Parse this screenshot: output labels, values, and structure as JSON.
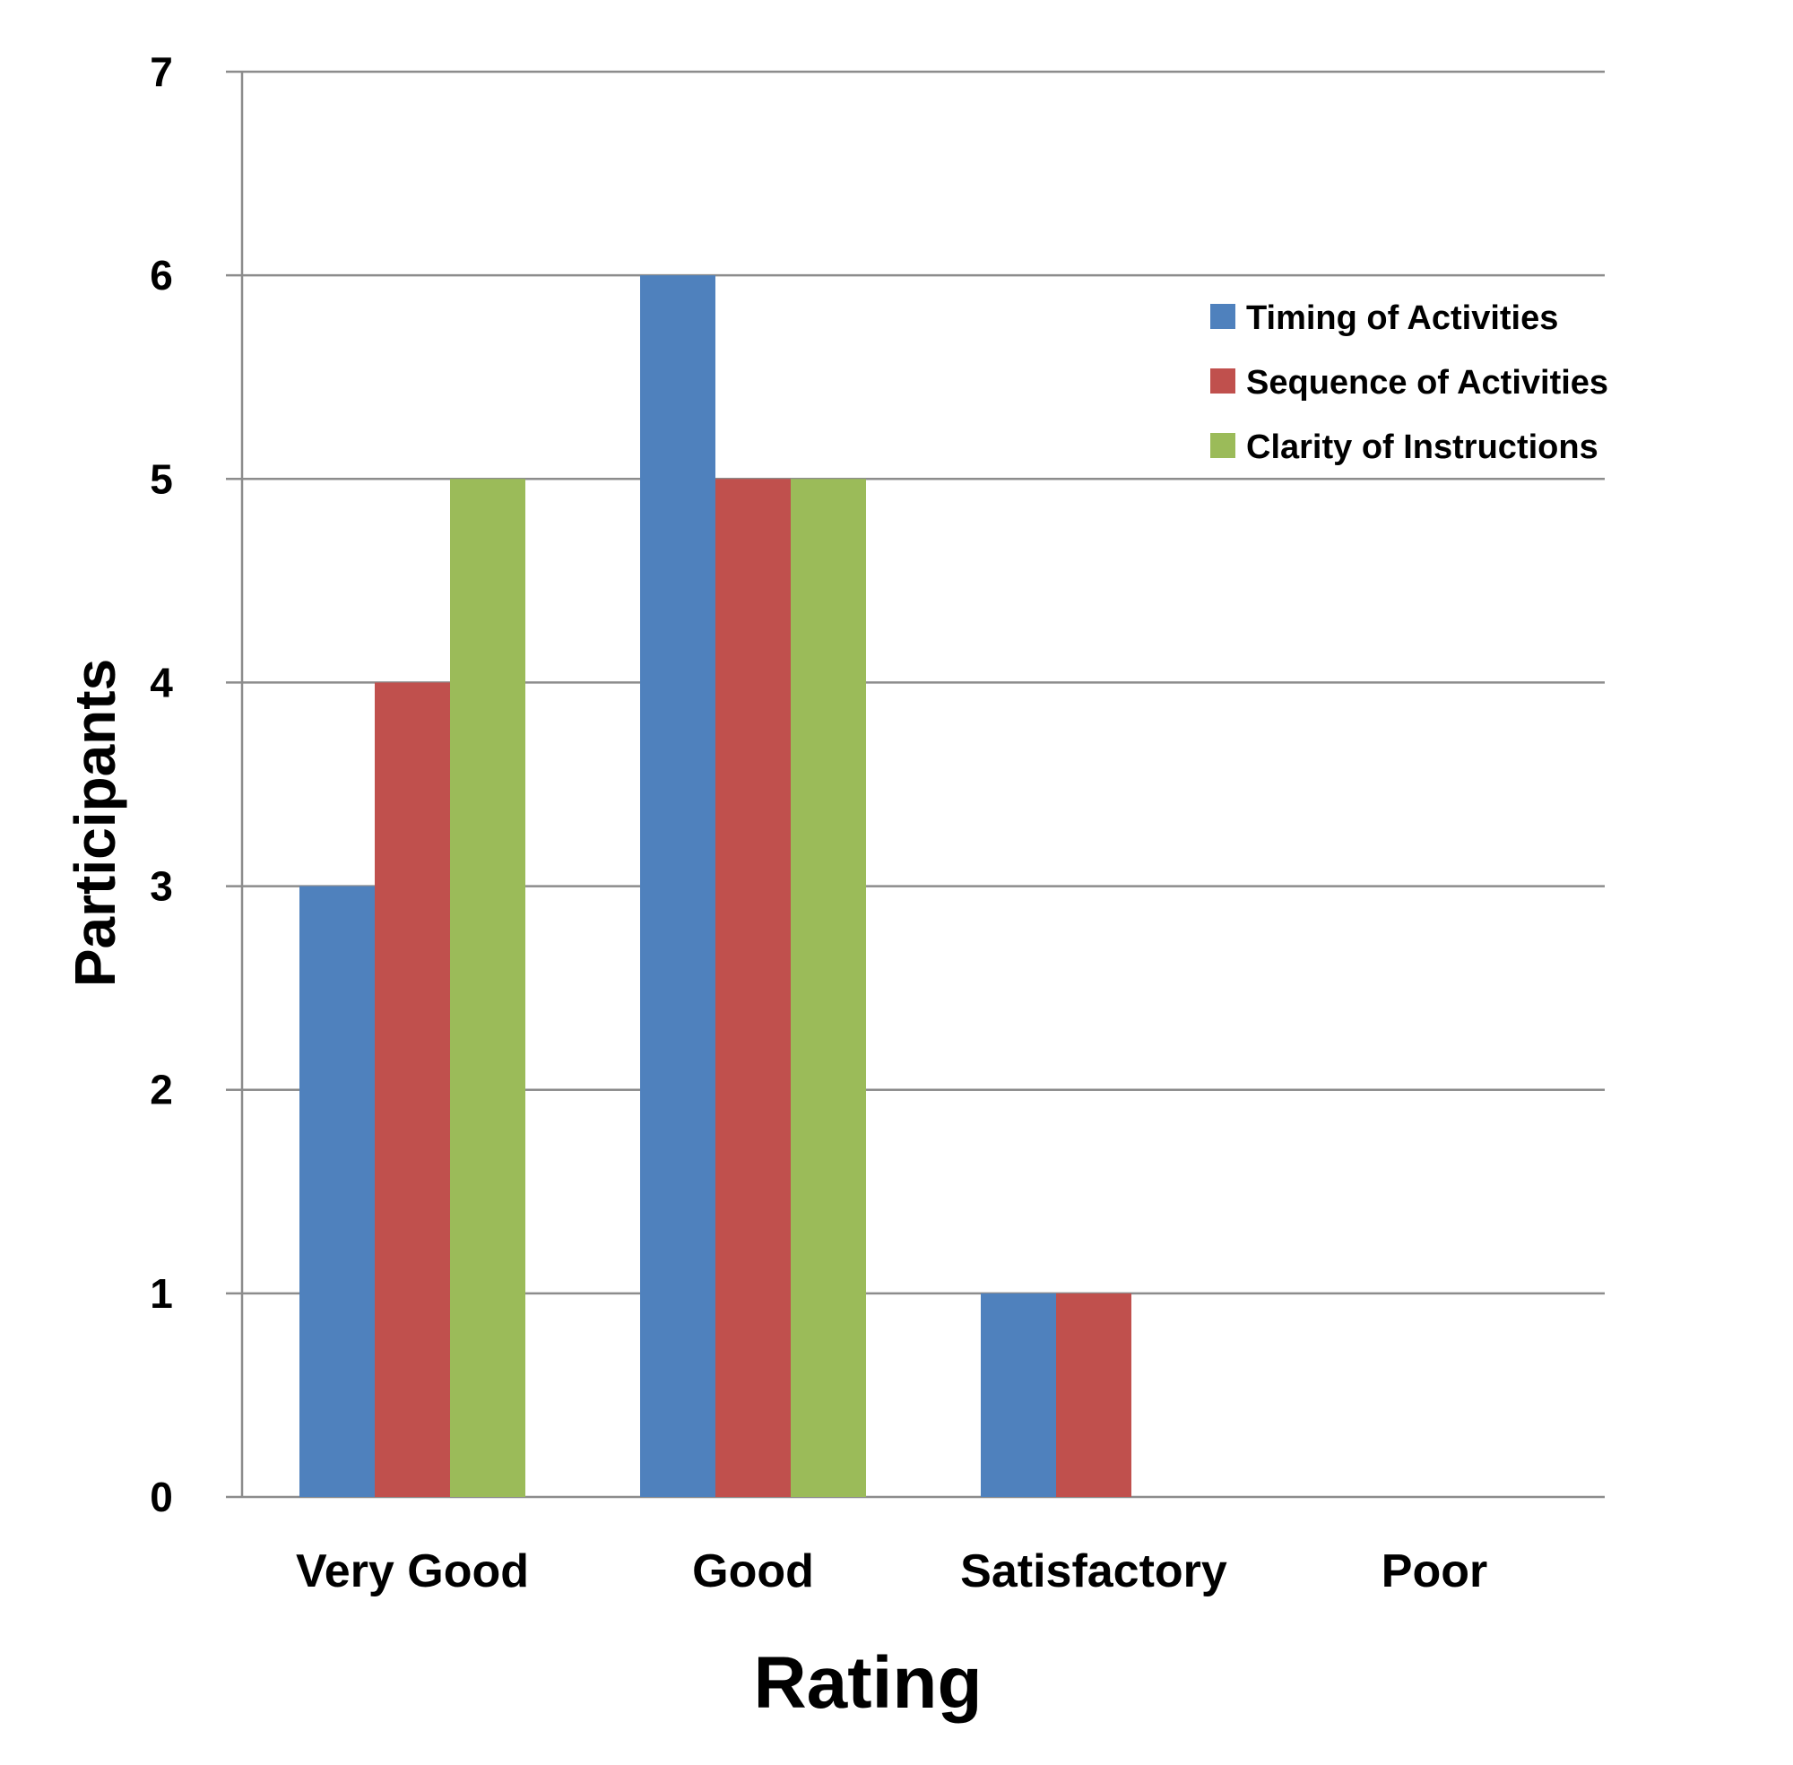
{
  "chart_data": {
    "type": "bar",
    "title": "",
    "xlabel": "Rating",
    "ylabel": "Participants",
    "categories": [
      "Very Good",
      "Good",
      "Satisfactory",
      "Poor"
    ],
    "series": [
      {
        "name": "Timing of Activities",
        "values": [
          3,
          6,
          1,
          0
        ],
        "color": "#4F81BD"
      },
      {
        "name": "Sequence of Activities",
        "values": [
          4,
          5,
          1,
          0
        ],
        "color": "#C0504D"
      },
      {
        "name": "Clarity of Instructions",
        "values": [
          5,
          5,
          0,
          0
        ],
        "color": "#9BBB59"
      }
    ],
    "ylim": [
      0,
      7
    ],
    "yticks": [
      "0",
      "1",
      "2",
      "3",
      "4",
      "5",
      "6",
      "7"
    ],
    "grid": true,
    "legend_position": "top-right"
  }
}
